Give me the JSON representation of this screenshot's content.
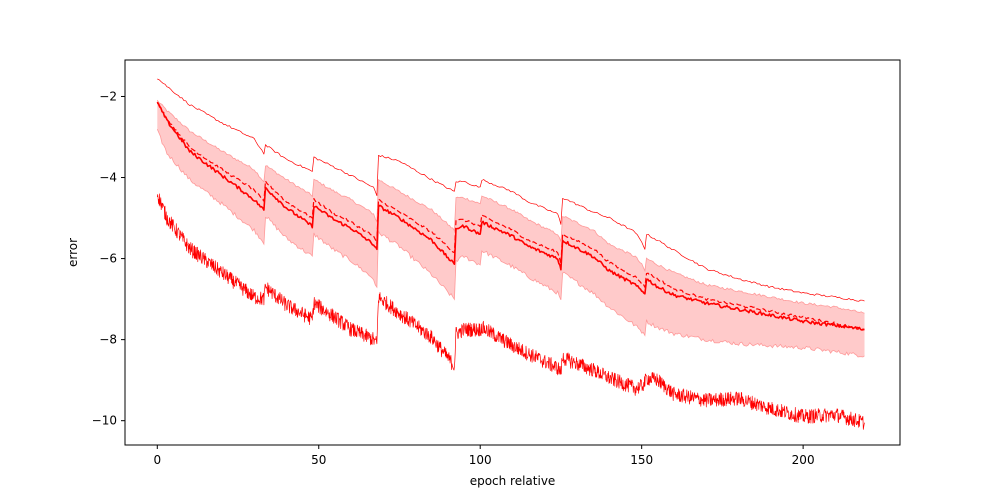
{
  "chart_data": {
    "type": "line",
    "title": "",
    "xlabel": "epoch relative",
    "ylabel": "error",
    "xlim": [
      -10,
      230
    ],
    "ylim": [
      -10.6,
      -1.1
    ],
    "xticks": [
      0,
      50,
      100,
      150,
      200
    ],
    "yticks": [
      -10,
      -8,
      -6,
      -4,
      -2
    ],
    "grid": false,
    "legend": "none",
    "colors": {
      "line": "#ff0000",
      "band": "#ffb3b3",
      "band_edge": "#ff9999"
    },
    "series": [
      {
        "role": "upper",
        "style": "solid-thin",
        "x": [
          0,
          3,
          10,
          20,
          30,
          33,
          33.5,
          40,
          48,
          48.5,
          55,
          60,
          67,
          68,
          68.5,
          75,
          85,
          92,
          92.5,
          95,
          100,
          100.5,
          110,
          115,
          124,
          125,
          125.5,
          135,
          140,
          148,
          150,
          151,
          151.5,
          155,
          160,
          170,
          180,
          190,
          200,
          210,
          219
        ],
        "y": [
          -1.55,
          -1.75,
          -2.2,
          -2.65,
          -3.05,
          -3.4,
          -3.2,
          -3.55,
          -3.85,
          -3.5,
          -3.75,
          -3.95,
          -4.25,
          -4.45,
          -3.45,
          -3.6,
          -4.05,
          -4.35,
          -4.1,
          -4.1,
          -4.25,
          -4.05,
          -4.35,
          -4.6,
          -4.9,
          -5.15,
          -4.5,
          -4.85,
          -5.0,
          -5.35,
          -5.6,
          -5.75,
          -5.4,
          -5.55,
          -5.8,
          -6.25,
          -6.5,
          -6.7,
          -6.85,
          -6.95,
          -7.05
        ]
      },
      {
        "role": "mean-dashed",
        "style": "dashed",
        "x": [
          0,
          3,
          10,
          20,
          30,
          33,
          33.5,
          40,
          48,
          48.5,
          55,
          60,
          67,
          68,
          68.5,
          75,
          85,
          92,
          92.5,
          95,
          100,
          100.5,
          110,
          115,
          124,
          125,
          125.5,
          135,
          140,
          148,
          150,
          151,
          151.5,
          155,
          160,
          170,
          180,
          190,
          200,
          210,
          219
        ],
        "y": [
          -2.15,
          -2.55,
          -3.25,
          -3.8,
          -4.3,
          -4.6,
          -4.1,
          -4.6,
          -5.0,
          -4.55,
          -4.9,
          -5.1,
          -5.45,
          -5.65,
          -4.55,
          -4.85,
          -5.35,
          -5.85,
          -5.05,
          -5.05,
          -5.2,
          -4.95,
          -5.3,
          -5.55,
          -5.85,
          -6.1,
          -5.4,
          -5.75,
          -6.1,
          -6.45,
          -6.6,
          -6.7,
          -6.35,
          -6.5,
          -6.75,
          -7.0,
          -7.15,
          -7.3,
          -7.45,
          -7.6,
          -7.75
        ]
      },
      {
        "role": "mean",
        "style": "solid-bold",
        "x": [
          0,
          3,
          10,
          20,
          30,
          33,
          33.5,
          40,
          48,
          48.5,
          55,
          60,
          67,
          68,
          68.5,
          75,
          85,
          92,
          92.5,
          95,
          100,
          100.5,
          110,
          115,
          124,
          125,
          125.5,
          135,
          140,
          148,
          150,
          151,
          151.5,
          155,
          160,
          170,
          180,
          190,
          200,
          210,
          219
        ],
        "y": [
          -2.15,
          -2.6,
          -3.35,
          -3.95,
          -4.55,
          -4.8,
          -4.25,
          -4.75,
          -5.2,
          -4.7,
          -5.05,
          -5.25,
          -5.65,
          -5.8,
          -4.7,
          -5.0,
          -5.55,
          -6.15,
          -5.25,
          -5.2,
          -5.4,
          -5.1,
          -5.45,
          -5.7,
          -6.0,
          -6.25,
          -5.55,
          -5.95,
          -6.3,
          -6.65,
          -6.8,
          -6.85,
          -6.5,
          -6.7,
          -6.9,
          -7.1,
          -7.25,
          -7.4,
          -7.55,
          -7.65,
          -7.75
        ]
      },
      {
        "role": "band-upper",
        "style": "band",
        "x": [
          0,
          3,
          10,
          20,
          30,
          33,
          33.5,
          40,
          48,
          48.5,
          55,
          60,
          67,
          68,
          68.5,
          75,
          85,
          92,
          92.5,
          95,
          100,
          100.5,
          110,
          115,
          124,
          125,
          125.5,
          135,
          140,
          148,
          150,
          151,
          151.5,
          155,
          160,
          170,
          180,
          190,
          200,
          210,
          219
        ],
        "y": [
          -2.1,
          -2.35,
          -2.85,
          -3.35,
          -3.8,
          -4.1,
          -3.7,
          -4.05,
          -4.45,
          -4.05,
          -4.35,
          -4.55,
          -4.9,
          -5.1,
          -4.05,
          -4.35,
          -4.8,
          -5.3,
          -4.5,
          -4.5,
          -4.65,
          -4.45,
          -4.8,
          -5.05,
          -5.4,
          -5.6,
          -4.95,
          -5.3,
          -5.65,
          -5.95,
          -6.15,
          -6.3,
          -6.0,
          -6.15,
          -6.35,
          -6.65,
          -6.8,
          -6.95,
          -7.1,
          -7.2,
          -7.35
        ]
      },
      {
        "role": "band-lower",
        "style": "band",
        "x": [
          0,
          3,
          10,
          20,
          30,
          33,
          33.5,
          40,
          48,
          48.5,
          55,
          60,
          67,
          68,
          68.5,
          75,
          85,
          92,
          92.5,
          95,
          100,
          100.5,
          110,
          115,
          124,
          125,
          125.5,
          135,
          140,
          148,
          150,
          151,
          151.5,
          155,
          160,
          170,
          180,
          190,
          200,
          210,
          219
        ],
        "y": [
          -2.85,
          -3.4,
          -4.05,
          -4.65,
          -5.3,
          -5.6,
          -4.95,
          -5.5,
          -5.95,
          -5.4,
          -5.8,
          -6.05,
          -6.5,
          -6.75,
          -5.35,
          -5.7,
          -6.4,
          -7.0,
          -6.05,
          -5.95,
          -6.15,
          -5.8,
          -6.2,
          -6.45,
          -6.85,
          -7.05,
          -6.35,
          -6.85,
          -7.2,
          -7.65,
          -7.8,
          -7.85,
          -7.55,
          -7.7,
          -7.85,
          -8.0,
          -8.1,
          -8.15,
          -8.2,
          -8.3,
          -8.4
        ]
      },
      {
        "role": "lower-noisy",
        "style": "solid-noisy",
        "noise": 0.18,
        "x": [
          0,
          3,
          10,
          20,
          30,
          33,
          33.5,
          40,
          48,
          48.5,
          55,
          60,
          67,
          68,
          68.5,
          75,
          85,
          92,
          92.5,
          95,
          100,
          100.5,
          110,
          115,
          124,
          125,
          125.5,
          135,
          140,
          148,
          150,
          151,
          151.5,
          155,
          160,
          170,
          180,
          190,
          200,
          210,
          219
        ],
        "y": [
          -4.4,
          -5.0,
          -5.75,
          -6.35,
          -6.95,
          -7.0,
          -6.7,
          -7.15,
          -7.5,
          -7.1,
          -7.45,
          -7.75,
          -8.0,
          -8.1,
          -6.95,
          -7.35,
          -7.95,
          -8.65,
          -7.85,
          -7.75,
          -7.75,
          -7.7,
          -8.15,
          -8.35,
          -8.7,
          -8.8,
          -8.45,
          -8.75,
          -8.95,
          -9.2,
          -9.15,
          -9.05,
          -8.95,
          -9.0,
          -9.35,
          -9.5,
          -9.45,
          -9.7,
          -9.9,
          -9.85,
          -10.05
        ]
      }
    ]
  }
}
